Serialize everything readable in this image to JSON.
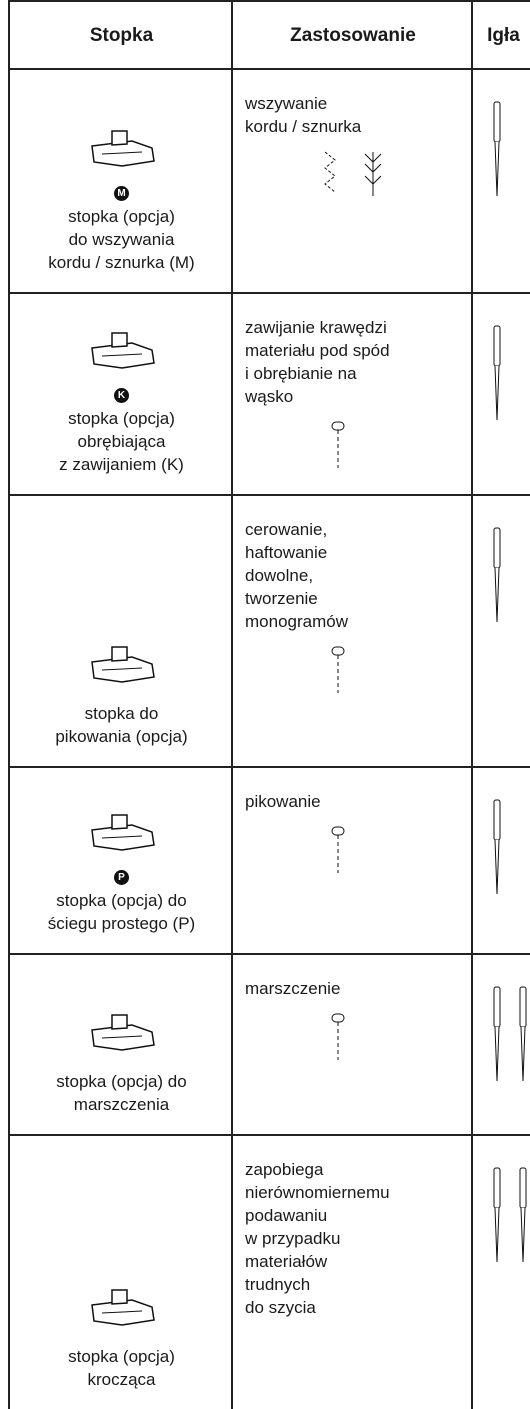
{
  "table": {
    "header": [
      "Stopka",
      "Zastosowanie",
      "Igła"
    ],
    "rows": [
      {
        "badge": "M",
        "foot": [
          "stopka (opcja)",
          "do wszywania",
          "kordu / sznurka (M)"
        ],
        "use": [
          "wszywanie",
          "kordu / sznurka"
        ]
      },
      {
        "badge": "K",
        "foot": [
          "stopka (opcja)",
          "obrębiająca",
          "z zawijaniem (K)"
        ],
        "use": [
          "zawijanie krawędzi",
          "materiału pod spód",
          "i obrębianie na",
          "wąsko"
        ]
      },
      {
        "foot": [
          "stopka do",
          "pikowania (opcja)"
        ],
        "use": [
          "cerowanie,",
          "haftowanie",
          "dowolne,",
          "tworzenie",
          "monogramów"
        ]
      },
      {
        "badge": "P",
        "foot": [
          "stopka (opcja) do",
          "ściegu prostego (P)"
        ],
        "use": [
          "pikowanie"
        ]
      },
      {
        "foot": [
          "stopka (opcja) do",
          "marszczenia"
        ],
        "use": [
          "marszczenie"
        ]
      },
      {
        "foot": [
          "stopka (opcja)",
          "krocząca"
        ],
        "use": [
          "zapobiega",
          "nierównomiernemu",
          "podawaniu",
          "w przypadku",
          "materiałów",
          "trudnych",
          "do szycia"
        ]
      }
    ]
  }
}
